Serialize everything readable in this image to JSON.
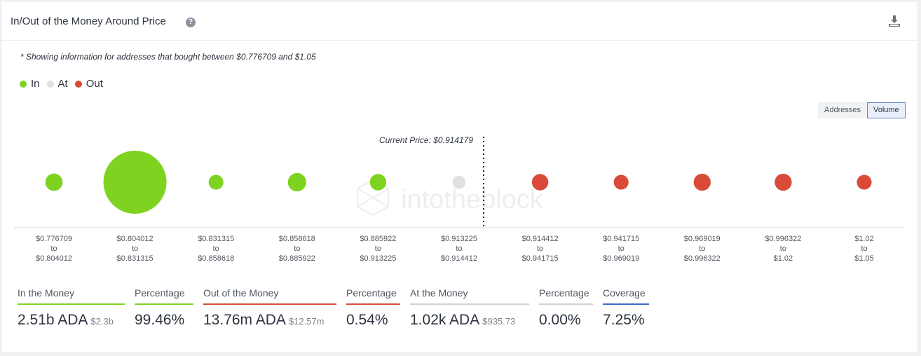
{
  "header": {
    "title": "In/Out of the Money Around Price",
    "help_icon": "question-circle-icon",
    "download_icon": "download-icon"
  },
  "note": "* Showing information for addresses that bought between $0.776709 and $1.05",
  "legend": [
    {
      "label": "In",
      "color": "#7ed321"
    },
    {
      "label": "At",
      "color": "#e1e1e1"
    },
    {
      "label": "Out",
      "color": "#d94a38"
    }
  ],
  "toggle": {
    "addresses": "Addresses",
    "volume": "Volume",
    "selected": "Volume"
  },
  "watermark": "intotheblock",
  "chart_data": {
    "type": "bubble",
    "current_price_label": "Current Price: $0.914179",
    "current_price": 0.914179,
    "categories": [
      {
        "from": "$0.776709",
        "to": "$0.804012",
        "status": "in"
      },
      {
        "from": "$0.804012",
        "to": "$0.831315",
        "status": "in"
      },
      {
        "from": "$0.831315",
        "to": "$0.858618",
        "status": "in"
      },
      {
        "from": "$0.858618",
        "to": "$0.885922",
        "status": "in"
      },
      {
        "from": "$0.885922",
        "to": "$0.913225",
        "status": "in"
      },
      {
        "from": "$0.913225",
        "to": "$0.914412",
        "status": "at"
      },
      {
        "from": "$0.914412",
        "to": "$0.941715",
        "status": "out"
      },
      {
        "from": "$0.941715",
        "to": "$0.969019",
        "status": "out"
      },
      {
        "from": "$0.969019",
        "to": "$0.996322",
        "status": "out"
      },
      {
        "from": "$0.996322",
        "to": "$1.02",
        "status": "out"
      },
      {
        "from": "$1.02",
        "to": "$1.05",
        "status": "out"
      }
    ],
    "relative_volume": [
      0.075,
      1.0,
      0.055,
      0.085,
      0.068,
      0.043,
      0.068,
      0.055,
      0.073,
      0.073,
      0.055
    ],
    "tick_connector": "to",
    "colors": {
      "in": "#7ed321",
      "at": "#e1e1e1",
      "out": "#d94a38"
    }
  },
  "stats": [
    {
      "label": "In the Money",
      "value": "2.51b ADA",
      "sub": "$2.3b",
      "color": "#7ed321"
    },
    {
      "label": "Percentage",
      "value": "99.46%",
      "sub": "",
      "color": "#7ed321"
    },
    {
      "label": "Out of the Money",
      "value": "13.76m ADA",
      "sub": "$12.57m",
      "color": "#d94a38"
    },
    {
      "label": "Percentage",
      "value": "0.54%",
      "sub": "",
      "color": "#d94a38"
    },
    {
      "label": "At the Money",
      "value": "1.02k ADA",
      "sub": "$935.73",
      "color": "#d0d0d0"
    },
    {
      "label": "Percentage",
      "value": "0.00%",
      "sub": "",
      "color": "#d0d0d0"
    },
    {
      "label": "Coverage",
      "value": "7.25%",
      "sub": "",
      "color": "#3a6bc6"
    }
  ]
}
